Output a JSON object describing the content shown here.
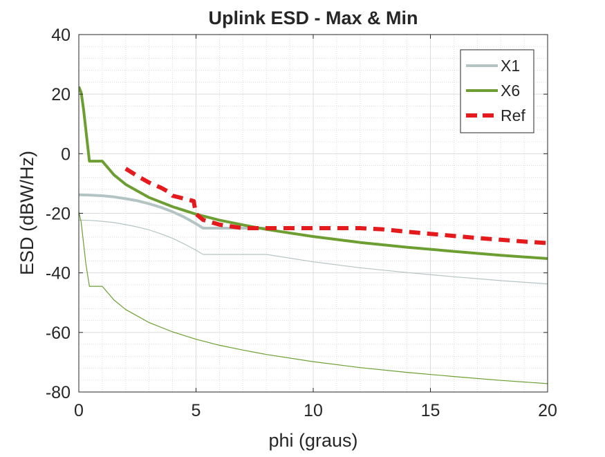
{
  "chart_data": {
    "type": "line",
    "title": "Uplink ESD - Max & Min",
    "xlabel": "phi (graus)",
    "ylabel": "ESD (dBW/Hz)",
    "xlim": [
      0,
      20
    ],
    "ylim": [
      -80,
      40
    ],
    "xticks": [
      0,
      5,
      10,
      15,
      20
    ],
    "yticks": [
      -80,
      -60,
      -40,
      -20,
      0,
      20,
      40
    ],
    "grid": "major and minor",
    "legend_position": "top-right",
    "series": [
      {
        "name": "X1",
        "color": "#b4c4c4",
        "style": "solid-thick",
        "in_legend": true,
        "x": [
          0,
          0.5,
          1,
          1.5,
          2,
          2.5,
          3,
          3.5,
          4,
          4.5,
          5,
          5.3,
          6,
          7,
          8
        ],
        "y": [
          -13.8,
          -13.9,
          -14.1,
          -14.5,
          -15.1,
          -15.8,
          -16.8,
          -18,
          -19.5,
          -21.3,
          -23.5,
          -25,
          -25,
          -25,
          -25
        ]
      },
      {
        "name": "",
        "color": "#b4c4c4",
        "style": "solid-thin",
        "in_legend": false,
        "x": [
          0,
          0.5,
          1,
          1.5,
          2,
          2.5,
          3,
          3.5,
          4,
          4.5,
          5,
          5.3,
          6,
          8,
          10,
          12,
          14,
          16,
          18,
          20
        ],
        "y": [
          -22.3,
          -22.4,
          -22.7,
          -23.1,
          -23.8,
          -24.6,
          -25.6,
          -26.9,
          -28.4,
          -30.3,
          -32.4,
          -33.8,
          -33.8,
          -33.8,
          -36.3,
          -38.3,
          -39.9,
          -41.3,
          -42.6,
          -43.7
        ]
      },
      {
        "name": "X6",
        "color": "#6c9e31",
        "style": "solid-thick",
        "in_legend": true,
        "x": [
          0,
          0.1,
          0.2,
          0.3,
          0.4,
          0.45,
          1,
          1.5,
          2,
          3,
          4,
          5,
          6,
          7,
          8,
          10,
          12,
          14,
          16,
          18,
          20
        ],
        "y": [
          22.5,
          20.5,
          15,
          8,
          1,
          -2.5,
          -2.5,
          -7.1,
          -10.3,
          -14.7,
          -17.8,
          -20.3,
          -22.3,
          -23.9,
          -25.4,
          -27.8,
          -29.8,
          -31.4,
          -32.8,
          -34.1,
          -35.2
        ]
      },
      {
        "name": "",
        "color": "#6c9e31",
        "style": "solid-thin",
        "in_legend": false,
        "x": [
          0,
          0.1,
          0.2,
          0.3,
          0.4,
          0.45,
          1,
          1.5,
          2,
          3,
          4,
          5,
          6,
          7,
          8,
          10,
          12,
          14,
          16,
          18,
          20
        ],
        "y": [
          -19.5,
          -23,
          -30,
          -37,
          -42,
          -44.5,
          -44.5,
          -49.1,
          -52.3,
          -56.7,
          -59.8,
          -62.3,
          -64.3,
          -65.9,
          -67.4,
          -69.8,
          -71.8,
          -73.4,
          -74.8,
          -76.1,
          -77.2
        ]
      },
      {
        "name": "Ref",
        "color": "#e41a1c",
        "style": "dashed-thick",
        "in_legend": true,
        "x": [
          2,
          2.5,
          3,
          3.5,
          3.8,
          4,
          4.5,
          4.9,
          5,
          5.3,
          6,
          7,
          8,
          9,
          10,
          11,
          12,
          13,
          14,
          15,
          16,
          17,
          18,
          19,
          20
        ],
        "y": [
          -5,
          -7.5,
          -9.7,
          -11.4,
          -12.7,
          -14.1,
          -15.1,
          -15.9,
          -20.2,
          -22.2,
          -23.8,
          -25,
          -25,
          -25,
          -25,
          -25,
          -25,
          -25.4,
          -26.2,
          -26.9,
          -27.6,
          -28.3,
          -28.9,
          -29.5,
          -30
        ]
      }
    ]
  }
}
